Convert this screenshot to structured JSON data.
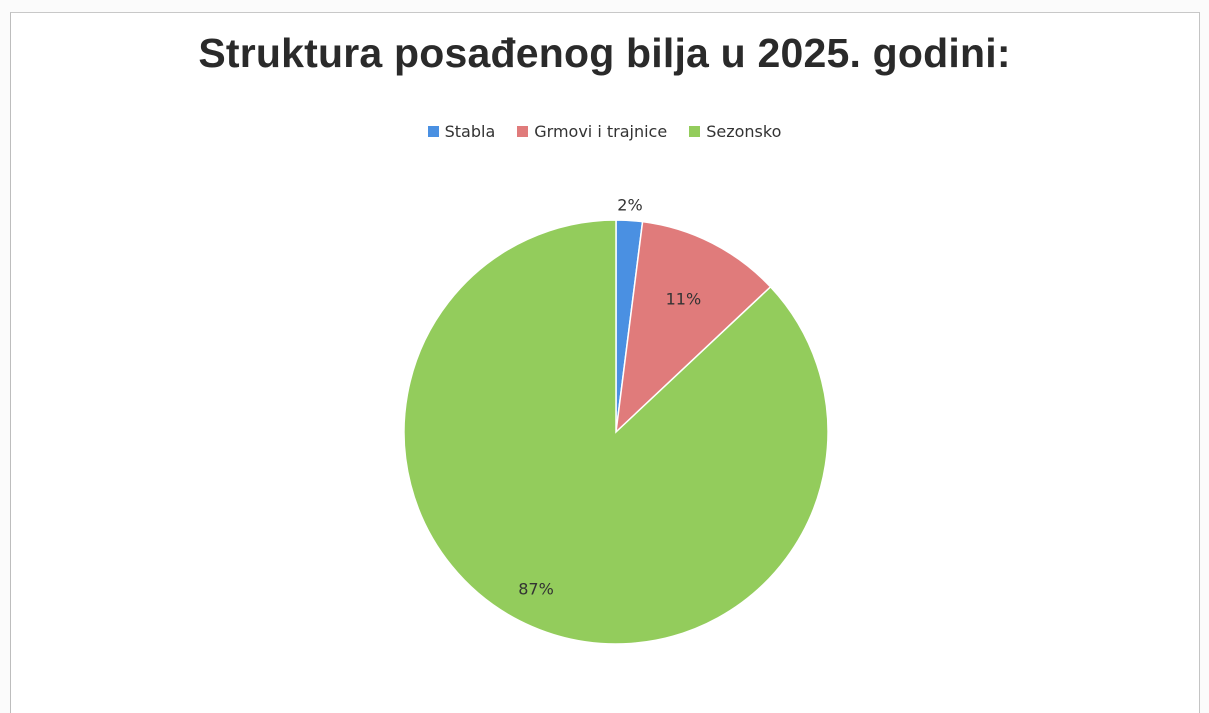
{
  "colors": {
    "stabla": "#4a90e2",
    "grmovi": "#e07b7b",
    "sezonsko": "#93cc5c"
  },
  "chart_data": {
    "type": "pie",
    "title": "Struktura posađenog bilja u 2025. godini:",
    "legend_position": "top",
    "categories": [
      "Stabla",
      "Grmovi i trajnice",
      "Sezonsko"
    ],
    "values": [
      2,
      11,
      87
    ],
    "data_labels": [
      "2%",
      "11%",
      "87%"
    ]
  }
}
